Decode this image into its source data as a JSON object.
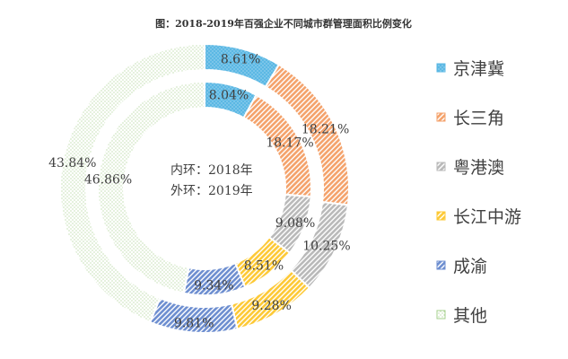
{
  "chart_data": {
    "type": "donut",
    "title": "图：2018-2019年百强企业不同城市群管理面积比例变化",
    "categories": [
      "京津冀",
      "长三角",
      "粤港澳",
      "长江中游",
      "成渝",
      "其他"
    ],
    "colors": [
      "#5bb8e4",
      "#f4a26b",
      "#b9b9b9",
      "#fdc936",
      "#6d8ed0",
      "#a6d08c"
    ],
    "center_text": [
      "内环：2018年",
      "外环：2019年"
    ],
    "series": [
      {
        "name": "2018年",
        "ring": "inner",
        "values": [
          8.04,
          18.17,
          9.08,
          8.51,
          9.34,
          46.86
        ],
        "labels": [
          "8.04%",
          "18.17%",
          "9.08%",
          "8.51%",
          "9.34%",
          "46.86%"
        ]
      },
      {
        "name": "2019年",
        "ring": "outer",
        "values": [
          8.61,
          18.21,
          10.25,
          9.28,
          9.81,
          43.84
        ],
        "labels": [
          "8.61%",
          "18.21%",
          "10.25%",
          "9.28%",
          "9.81%",
          "43.84%"
        ]
      }
    ],
    "legend": {
      "position": "right"
    }
  }
}
